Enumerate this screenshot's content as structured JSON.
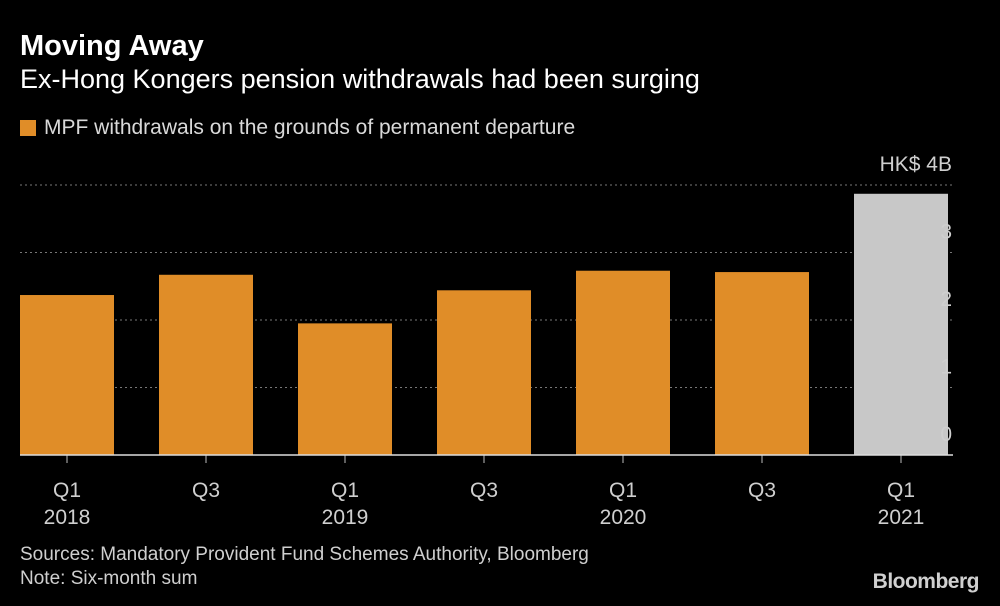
{
  "chart_data": {
    "type": "bar",
    "title": "Moving Away",
    "subtitle": "Ex-Hong Kongers pension withdrawals had been surging",
    "legend": [
      {
        "label": "MPF withdrawals on the grounds of permanent departure",
        "color": "#e08d28"
      }
    ],
    "unit_label": "HK$ 4B",
    "categories": [
      "Q1 2018",
      "Q3 2018",
      "Q1 2019",
      "Q3 2019",
      "Q1 2020",
      "Q3 2020",
      "Q1 2021"
    ],
    "x_tick_labels": [
      {
        "quarter": "Q1",
        "year": "2018"
      },
      {
        "quarter": "Q3",
        "year": ""
      },
      {
        "quarter": "Q1",
        "year": "2019"
      },
      {
        "quarter": "Q3",
        "year": ""
      },
      {
        "quarter": "Q1",
        "year": "2020"
      },
      {
        "quarter": "Q3",
        "year": ""
      },
      {
        "quarter": "Q1",
        "year": "2021"
      }
    ],
    "values": [
      2.37,
      2.67,
      1.95,
      2.44,
      2.73,
      2.71,
      3.87
    ],
    "bar_colors": [
      "#e08d28",
      "#e08d28",
      "#e08d28",
      "#e08d28",
      "#e08d28",
      "#e08d28",
      "#c8c8c8"
    ],
    "y_ticks": [
      0,
      1,
      2,
      3,
      4
    ],
    "y_tick_labels": [
      "0",
      "1",
      "2",
      "3",
      ""
    ],
    "ylim": [
      0,
      4
    ],
    "grid": true,
    "xlabel": "",
    "ylabel": ""
  },
  "footer": {
    "sources": "Sources: Mandatory Provident Fund Schemes Authority, Bloomberg",
    "note": "Note: Six-month sum",
    "logo": "Bloomberg"
  }
}
